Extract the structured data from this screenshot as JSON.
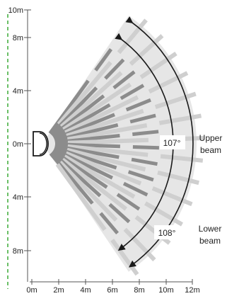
{
  "y_axis": {
    "labels": [
      "10m",
      "8m",
      "4m",
      "0m",
      "4m",
      "8m"
    ]
  },
  "x_axis": {
    "labels": [
      "0m",
      "2m",
      "4m",
      "6m",
      "8m",
      "10m",
      "12m"
    ]
  },
  "upper_beam": {
    "angle_label": "107°",
    "name_line1": "Upper",
    "name_line2": "beam",
    "angle_deg": 107
  },
  "lower_beam": {
    "angle_label": "108°",
    "name_line1": "Lower",
    "name_line2": "beam",
    "angle_deg": 108
  },
  "colors": {
    "coverage_area": "#e6e6e6",
    "beam_dark": "#8c8c8c",
    "beam_light": "#cfcfcf",
    "axis_dashed": "#3aaa35",
    "arc": "#1a1a1a"
  }
}
